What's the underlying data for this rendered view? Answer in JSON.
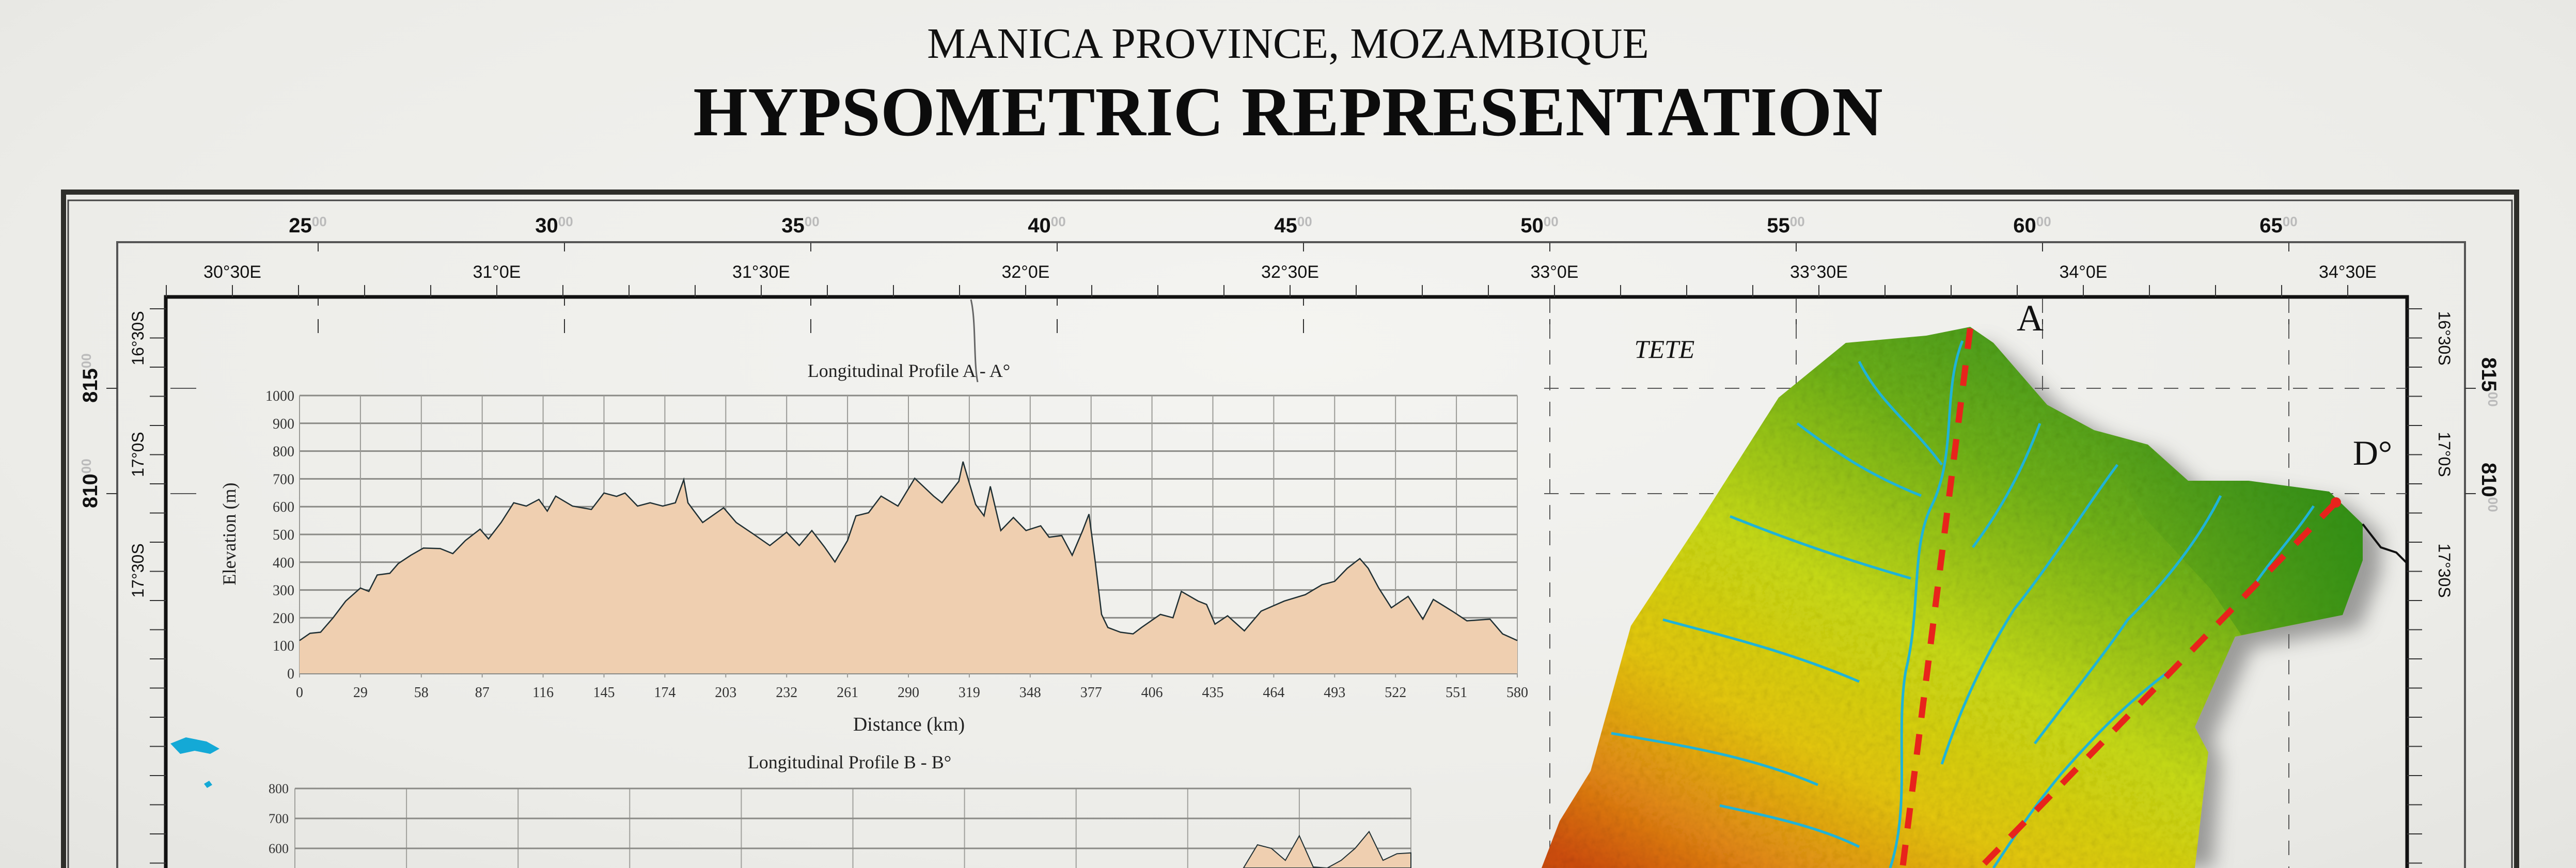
{
  "title": {
    "subtitle": "MANICA PROVINCE, MOZAMBIQUE",
    "main": "HYPSOMETRIC REPRESENTATION"
  },
  "frame": {
    "utm_top": [
      {
        "major": "25",
        "minor": "00"
      },
      {
        "major": "30",
        "minor": "00"
      },
      {
        "major": "35",
        "minor": "00"
      },
      {
        "major": "40",
        "minor": "00"
      },
      {
        "major": "45",
        "minor": "00"
      },
      {
        "major": "50",
        "minor": "00"
      },
      {
        "major": "55",
        "minor": "00"
      },
      {
        "major": "60",
        "minor": "00"
      },
      {
        "major": "65",
        "minor": "00"
      }
    ],
    "lon_top": [
      "30°30E",
      "31°0E",
      "31°30E",
      "32°0E",
      "32°30E",
      "33°0E",
      "33°30E",
      "34°0E",
      "34°30E"
    ],
    "lat_left": [
      "16°30S",
      "17°0S",
      "17°30S"
    ],
    "utm_left": [
      {
        "major": "815",
        "minor": "00"
      },
      {
        "major": "810",
        "minor": "00"
      }
    ],
    "lat_right": [
      "16°30S",
      "17°0S",
      "17°30S"
    ],
    "utm_right": [
      {
        "major": "815",
        "minor": "00"
      },
      {
        "major": "810",
        "minor": "00"
      }
    ]
  },
  "map": {
    "region_label": "TETE",
    "profile_labels": {
      "a_start": "A",
      "d_end": "D°"
    },
    "colors": {
      "low": "#2f8f1c",
      "mid": "#c8dc14",
      "high_mid": "#e6c810",
      "high": "#d9600c",
      "rivers": "#1fb3d8",
      "profile_lines": "#e8231c",
      "lakes": "#14a9d6"
    }
  },
  "chart_data": [
    {
      "type": "area",
      "title": "Longitudinal Profile A     - A°",
      "xlabel": "Distance (km)",
      "ylabel": "Elevation (m)",
      "xlim": [
        0,
        580
      ],
      "ylim": [
        0,
        1000
      ],
      "xticks": [
        0,
        29,
        58,
        87,
        116,
        145,
        174,
        203,
        232,
        261,
        290,
        319,
        348,
        377,
        406,
        435,
        464,
        493,
        522,
        551,
        580
      ],
      "yticks": [
        0,
        100,
        200,
        300,
        400,
        500,
        600,
        700,
        800,
        900,
        1000
      ],
      "grid": true,
      "fill_color": "#efcfb0",
      "line_color": "#1f2f33",
      "x": [
        0,
        5,
        10,
        16,
        22,
        29,
        33,
        37,
        43,
        47,
        53,
        59,
        67,
        73,
        79,
        86,
        90,
        96,
        102,
        108,
        114,
        118,
        122,
        130,
        139,
        145,
        151,
        155,
        161,
        167,
        173,
        179,
        183,
        185,
        192,
        202,
        208,
        216,
        224,
        232,
        238,
        244,
        250,
        255,
        261,
        265,
        271,
        277,
        285,
        293,
        302,
        306,
        314,
        316,
        322,
        326,
        329,
        334,
        340,
        346,
        353,
        357,
        363,
        368,
        373,
        376,
        379,
        382,
        385,
        391,
        397,
        401,
        410,
        416,
        420,
        428,
        432,
        436,
        442,
        450,
        458,
        469,
        479,
        487,
        493,
        499,
        505,
        509,
        514,
        520,
        528,
        535,
        540,
        549,
        556,
        567,
        573,
        580
      ],
      "y": [
        118,
        144,
        148,
        200,
        260,
        307,
        295,
        354,
        360,
        395,
        425,
        451,
        449,
        431,
        478,
        519,
        484,
        543,
        614,
        602,
        626,
        584,
        638,
        602,
        590,
        649,
        637,
        649,
        602,
        614,
        602,
        614,
        697,
        614,
        543,
        596,
        543,
        502,
        460,
        508,
        460,
        514,
        455,
        401,
        478,
        567,
        578,
        638,
        602,
        702,
        638,
        614,
        691,
        762,
        608,
        567,
        673,
        514,
        561,
        514,
        531,
        490,
        496,
        425,
        514,
        573,
        401,
        212,
        165,
        148,
        142,
        165,
        212,
        200,
        295,
        260,
        248,
        177,
        207,
        153,
        224,
        260,
        283,
        319,
        331,
        378,
        413,
        378,
        307,
        236,
        277,
        195,
        266,
        224,
        189,
        195,
        142,
        118
      ]
    },
    {
      "type": "area",
      "title": "Longitudinal Profile B     - B°",
      "ylim_visible": [
        535,
        800
      ],
      "yticks": [
        800,
        700,
        600
      ],
      "grid": true,
      "fill_color": "#efcfb0",
      "line_color": "#1f2f33",
      "values": [
        null,
        null,
        null,
        null,
        null,
        null,
        null,
        null,
        null,
        null,
        null,
        null,
        null,
        null,
        null,
        null,
        null,
        null,
        null,
        null,
        null,
        null,
        null,
        null,
        null,
        null,
        null,
        null,
        null,
        null,
        null,
        null,
        null,
        null,
        null,
        null,
        null,
        null,
        null,
        null,
        null,
        null,
        null,
        null,
        null,
        null,
        null,
        null,
        null,
        null,
        null,
        null,
        null,
        null,
        null,
        null,
        null,
        null,
        null,
        null,
        null,
        null,
        null,
        null,
        null,
        null,
        null,
        null,
        520,
        612,
        600,
        560,
        642,
        538,
        520,
        560,
        600,
        656,
        560,
        582,
        585
      ]
    }
  ]
}
